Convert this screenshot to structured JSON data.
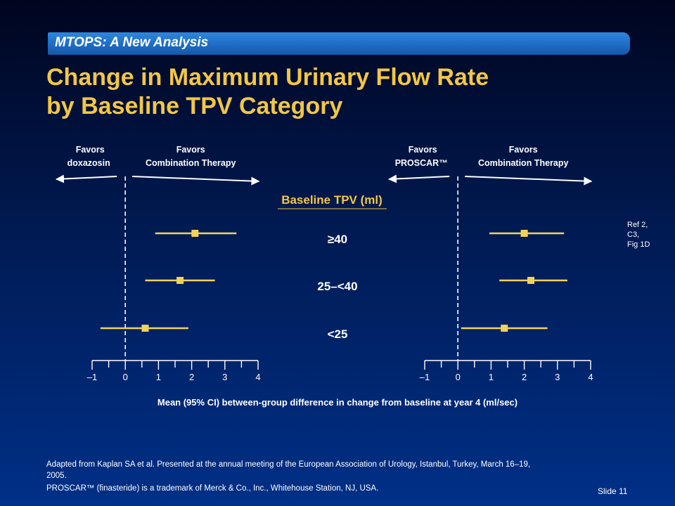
{
  "banner": "MTOPS: A New Analysis",
  "title_lines": [
    "Change in Maximum Urinary Flow Rate",
    "by Baseline TPV Category"
  ],
  "colors": {
    "title": "#f2c744",
    "marker": "#f2d35a",
    "axis": "#ffffff",
    "banner": "#1f6cc4"
  },
  "chart_data": {
    "type": "forest",
    "xlabel": "Mean (95% CI) between-group difference in change from baseline at year 4 (ml/sec)",
    "center_heading": "Baseline TPV (ml)",
    "categories": [
      "≥40",
      "25–<40",
      "<25"
    ],
    "xlim": [
      -1,
      4
    ],
    "tick_values": [
      -1,
      0,
      1,
      2,
      3,
      4
    ],
    "tick_labels": [
      "–1",
      "0",
      "1",
      "2",
      "3",
      "4"
    ],
    "reference_line": 0,
    "panels": [
      {
        "left_label": [
          "Favors",
          "doxazosin"
        ],
        "right_label": [
          "Favors",
          "Combination Therapy"
        ],
        "estimates": [
          2.1,
          1.65,
          0.6
        ],
        "ci_lower": [
          0.9,
          0.6,
          -0.75
        ],
        "ci_upper": [
          3.35,
          2.7,
          1.9
        ]
      },
      {
        "left_label": [
          "Favors",
          "PROSCAR™"
        ],
        "right_label": [
          "Favors",
          "Combination Therapy"
        ],
        "estimates": [
          2.0,
          2.2,
          1.4
        ],
        "ci_lower": [
          0.95,
          1.25,
          0.1
        ],
        "ci_upper": [
          3.2,
          3.3,
          2.7
        ]
      }
    ]
  },
  "ref_lines": [
    "Ref 2,",
    "C3,",
    "Fig 1D"
  ],
  "footer": {
    "citation_line1": "Adapted from Kaplan SA et al.  Presented at the annual meeting of the European Association of Urology, Istanbul, Turkey,  March 16–19,",
    "citation_line2": "2005.",
    "trademark": "PROSCAR™  (finasteride) is a trademark of Merck & Co., Inc., Whitehouse Station, NJ, USA.",
    "slide_label": "Slide 11"
  }
}
